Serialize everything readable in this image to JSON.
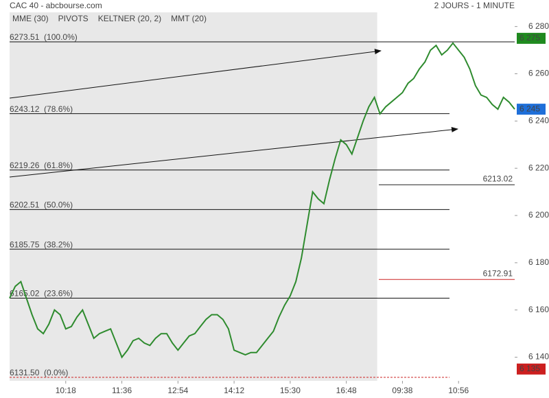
{
  "chart_data": {
    "type": "line",
    "title": "CAC 40 - abcbourse.com",
    "subtitle": "2 JOURS - 1 MINUTE",
    "legend": [
      {
        "name": "MME (30)",
        "color": "#1f6fbf"
      },
      {
        "name": "PIVOTS",
        "color": "#444444"
      },
      {
        "name": "KELTNER (20, 2)",
        "color": "#3a9a3a"
      },
      {
        "name": "MMT (20)",
        "color": "#1f6fbf"
      }
    ],
    "xlim": [
      0,
      90
    ],
    "xticks": [
      {
        "value": 10,
        "label": "10:18"
      },
      {
        "value": 20,
        "label": "11:36"
      },
      {
        "value": 30,
        "label": "12:54"
      },
      {
        "value": 40,
        "label": "14:12"
      },
      {
        "value": 50,
        "label": "15:30"
      },
      {
        "value": 60,
        "label": "16:48"
      },
      {
        "value": 70,
        "label": "09:38"
      },
      {
        "value": 80,
        "label": "10:56"
      }
    ],
    "ylim": [
      6130,
      6286
    ],
    "yticks": [
      {
        "value": 6140,
        "label": "6 140"
      },
      {
        "value": 6160,
        "label": "6 160"
      },
      {
        "value": 6180,
        "label": "6 180"
      },
      {
        "value": 6200,
        "label": "6 200"
      },
      {
        "value": 6220,
        "label": "6 220"
      },
      {
        "value": 6240,
        "label": "6 240"
      },
      {
        "value": 6260,
        "label": "6 260"
      },
      {
        "value": 6280,
        "label": "6 280"
      }
    ],
    "previous_session_end": 65.5,
    "series": [
      {
        "name": "CAC 40",
        "color": "#2e8b2e",
        "values": [
          6165,
          6170,
          6172,
          6165,
          6158,
          6152,
          6150,
          6154,
          6160,
          6158,
          6152,
          6153,
          6157,
          6160,
          6154,
          6148,
          6150,
          6151,
          6152,
          6146,
          6140,
          6143,
          6147,
          6148,
          6146,
          6145,
          6148,
          6150,
          6150,
          6146,
          6143,
          6146,
          6149,
          6150,
          6153,
          6156,
          6158,
          6158,
          6156,
          6152,
          6143,
          6142,
          6141,
          6142,
          6142,
          6145,
          6148,
          6151,
          6157,
          6162,
          6166,
          6172,
          6182,
          6196,
          6210,
          6207,
          6205,
          6215,
          6224,
          6232,
          6230,
          6226,
          6233,
          6240,
          6246,
          6250,
          6243,
          6246,
          6248,
          6250,
          6252,
          6256,
          6258,
          6262,
          6265,
          6270,
          6272,
          6268,
          6270,
          6273,
          6270,
          6267,
          6262,
          6255,
          6251,
          6250,
          6247,
          6245,
          6250,
          6248,
          6245
        ]
      }
    ],
    "fibonacci": [
      {
        "value": 6273.51,
        "label": "6273.51  (100.0%)"
      },
      {
        "value": 6243.12,
        "label": "6243.12  (78.6%)"
      },
      {
        "value": 6219.26,
        "label": "6219.26  (61.8%)"
      },
      {
        "value": 6202.51,
        "label": "6202.51  (50.0%)"
      },
      {
        "value": 6185.75,
        "label": "6185.75  (38.2%)"
      },
      {
        "value": 6165.02,
        "label": "6165.02  (23.6%)"
      },
      {
        "value": 6131.5,
        "label": "6131.50  (0.0%)"
      }
    ],
    "pivots": [
      {
        "value": 6213.02,
        "label": "6213.02",
        "color": "#222222"
      },
      {
        "value": 6172.91,
        "label": "6172.91",
        "color": "#cc2222"
      }
    ],
    "axis_tags": [
      {
        "value": 6275,
        "label": "6 275",
        "color": "#1f8a1f"
      },
      {
        "value": 6245,
        "label": "6 245",
        "color": "#1e6fd9"
      },
      {
        "value": 6135,
        "label": "6 135",
        "color": "#cc1f1f"
      }
    ]
  }
}
